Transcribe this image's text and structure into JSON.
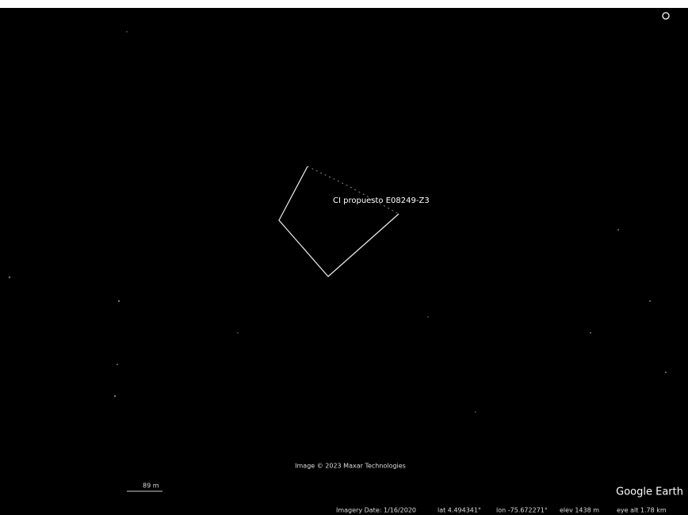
{
  "placemark": {
    "label": "CI propuesto E08249-Z3"
  },
  "attribution": "Image © 2023 Maxar Technologies",
  "scale_bar": "89 m",
  "logo": "Google Earth",
  "status_bar": {
    "imagery_date": "Imagery Date: 1/16/2020",
    "lat": "lat  4.494341°",
    "lon": "lon  -75.672271°",
    "elev": "elev  1438 m",
    "eye_alt": "eye alt  1.78 km"
  }
}
